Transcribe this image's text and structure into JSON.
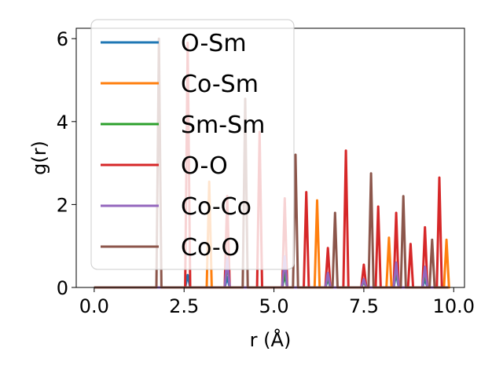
{
  "chart_data": {
    "type": "line",
    "title": "",
    "xlabel": "r (Å)",
    "ylabel": "g(r)",
    "xlim": [
      -0.5,
      10.3
    ],
    "ylim": [
      0,
      6.25
    ],
    "xticks": [
      0.0,
      2.5,
      5.0,
      7.5,
      10.0
    ],
    "xtick_labels": [
      "0.0",
      "2.5",
      "5.0",
      "7.5",
      "10.0"
    ],
    "yticks": [
      0,
      2,
      4,
      6
    ],
    "ytick_labels": [
      "0",
      "2",
      "4",
      "6"
    ],
    "grid": false,
    "legend_position": "upper-left",
    "series": [
      {
        "name": "O-Sm",
        "color": "#1f77b4",
        "peaks": [
          [
            2.6,
            0.3
          ],
          [
            3.7,
            0.25
          ],
          [
            5.3,
            0.3
          ],
          [
            6.5,
            0.2
          ],
          [
            8.4,
            0.35
          ],
          [
            9.2,
            0.2
          ]
        ]
      },
      {
        "name": "Co-Sm",
        "color": "#ff7f0e",
        "peaks": [
          [
            3.2,
            2.55
          ],
          [
            6.2,
            2.1
          ],
          [
            8.2,
            1.2
          ],
          [
            9.8,
            1.15
          ]
        ]
      },
      {
        "name": "Sm-Sm",
        "color": "#2ca02c",
        "peaks": [
          [
            3.7,
            0.6
          ],
          [
            5.3,
            0.35
          ],
          [
            6.5,
            0.25
          ],
          [
            7.5,
            0.15
          ],
          [
            8.4,
            0.45
          ],
          [
            9.2,
            0.35
          ]
        ]
      },
      {
        "name": "O-O",
        "color": "#d62728",
        "peaks": [
          [
            2.6,
            5.9
          ],
          [
            3.7,
            2.2
          ],
          [
            4.6,
            3.75
          ],
          [
            5.3,
            2.15
          ],
          [
            5.9,
            2.3
          ],
          [
            6.5,
            0.95
          ],
          [
            7.0,
            3.3
          ],
          [
            7.5,
            0.55
          ],
          [
            7.9,
            1.95
          ],
          [
            8.4,
            1.8
          ],
          [
            8.8,
            1.05
          ],
          [
            9.2,
            1.45
          ],
          [
            9.6,
            2.65
          ]
        ]
      },
      {
        "name": "Co-Co",
        "color": "#9467bd",
        "peaks": [
          [
            3.7,
            0.7
          ],
          [
            5.3,
            0.75
          ],
          [
            6.5,
            0.35
          ],
          [
            7.5,
            0.2
          ],
          [
            8.4,
            0.6
          ],
          [
            9.2,
            0.5
          ]
        ]
      },
      {
        "name": "Co-O",
        "color": "#8c564b",
        "peaks": [
          [
            1.8,
            6.0
          ],
          [
            4.2,
            4.55
          ],
          [
            5.6,
            3.2
          ],
          [
            6.7,
            1.8
          ],
          [
            7.7,
            2.75
          ],
          [
            8.6,
            2.2
          ],
          [
            9.4,
            1.15
          ]
        ]
      }
    ]
  }
}
